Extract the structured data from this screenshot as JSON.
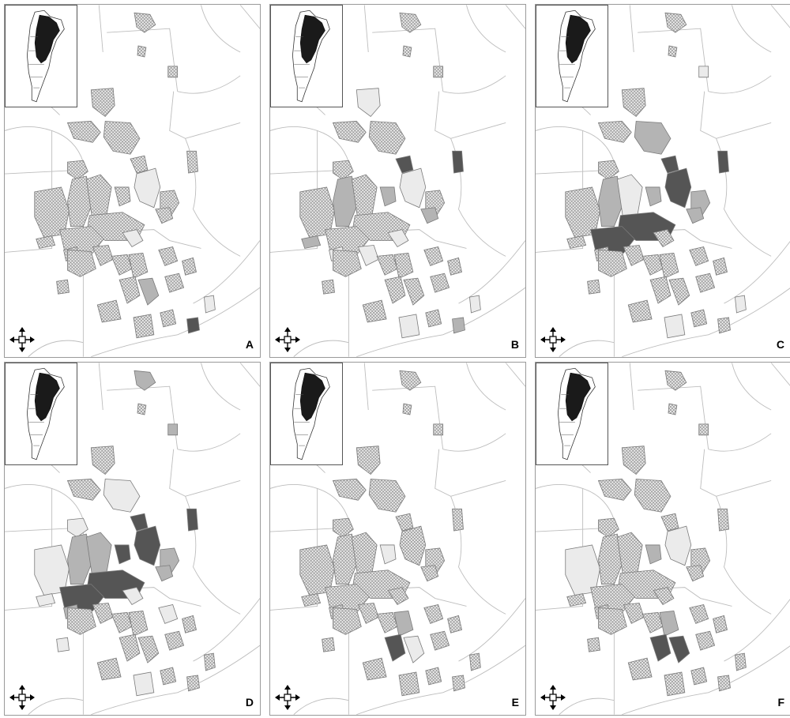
{
  "figure": {
    "panels": [
      {
        "label": "A",
        "districts": [
          [
            "d1",
            "hatch"
          ],
          [
            "d2",
            "hatch"
          ],
          [
            "d3",
            "hatch"
          ],
          [
            "d4",
            "hatch"
          ],
          [
            "d5",
            "hatch"
          ],
          [
            "d6",
            "hatch"
          ],
          [
            "d7",
            "hatch"
          ],
          [
            "d8",
            "hatch"
          ],
          [
            "d9",
            "light"
          ],
          [
            "d10",
            "hatch"
          ],
          [
            "d11",
            "hatch"
          ],
          [
            "d12",
            "hatch"
          ],
          [
            "d13",
            "hatch"
          ],
          [
            "d14",
            "hatch"
          ],
          [
            "d15",
            "hatch"
          ],
          [
            "d16",
            "hatch"
          ],
          [
            "d17",
            "hatch"
          ],
          [
            "d18",
            "hatch"
          ],
          [
            "d19",
            "hatch"
          ],
          [
            "d20",
            "light"
          ],
          [
            "d21",
            "hatch"
          ],
          [
            "d22",
            "hatch"
          ],
          [
            "d23",
            "hatch"
          ],
          [
            "d24",
            "hatch"
          ],
          [
            "d25",
            "hatch"
          ],
          [
            "d26",
            "hatch"
          ],
          [
            "d27",
            "mid"
          ],
          [
            "d28",
            "hatch"
          ],
          [
            "d29",
            "hatch"
          ],
          [
            "d30",
            "hatch"
          ],
          [
            "d31",
            "light"
          ],
          [
            "d32",
            "dark"
          ],
          [
            "d33",
            "hatch"
          ],
          [
            "d34",
            "hatch"
          ],
          [
            "d35",
            "hatch"
          ],
          [
            "d36",
            "hatch"
          ]
        ]
      },
      {
        "label": "B",
        "districts": [
          [
            "d1",
            "hatch"
          ],
          [
            "d2",
            "hatch"
          ],
          [
            "d3",
            "hatch"
          ],
          [
            "d4",
            "light"
          ],
          [
            "d5",
            "hatch"
          ],
          [
            "d6",
            "hatch"
          ],
          [
            "d7",
            "hatch"
          ],
          [
            "d8",
            "dark"
          ],
          [
            "d9",
            "light"
          ],
          [
            "d10",
            "hatch"
          ],
          [
            "d11",
            "hatch"
          ],
          [
            "d12",
            "mid"
          ],
          [
            "d13",
            "hatch"
          ],
          [
            "d14",
            "mid"
          ],
          [
            "d15",
            "dark"
          ],
          [
            "d16",
            "mid"
          ],
          [
            "d17",
            "hatch"
          ],
          [
            "d18",
            "hatch"
          ],
          [
            "d19",
            "mid"
          ],
          [
            "d20",
            "light"
          ],
          [
            "d21",
            "light"
          ],
          [
            "d22",
            "light"
          ],
          [
            "d23",
            "hatch"
          ],
          [
            "d24",
            "hatch"
          ],
          [
            "d25",
            "hatch"
          ],
          [
            "d26",
            "hatch"
          ],
          [
            "d27",
            "hatch"
          ],
          [
            "d28",
            "hatch"
          ],
          [
            "d29",
            "light"
          ],
          [
            "d30",
            "hatch"
          ],
          [
            "d31",
            "light"
          ],
          [
            "d32",
            "mid"
          ],
          [
            "d33",
            "hatch"
          ],
          [
            "d34",
            "hatch"
          ],
          [
            "d35",
            "hatch"
          ],
          [
            "d36",
            "hatch"
          ]
        ]
      },
      {
        "label": "C",
        "districts": [
          [
            "d1",
            "hatch"
          ],
          [
            "d2",
            "light"
          ],
          [
            "d3",
            "hatch"
          ],
          [
            "d4",
            "hatch"
          ],
          [
            "d5",
            "mid"
          ],
          [
            "d6",
            "hatch"
          ],
          [
            "d7",
            "hatch"
          ],
          [
            "d8",
            "dark"
          ],
          [
            "d9",
            "dark"
          ],
          [
            "d10",
            "mid"
          ],
          [
            "d11",
            "hatch"
          ],
          [
            "d12",
            "mid"
          ],
          [
            "d13",
            "light"
          ],
          [
            "d14",
            "mid"
          ],
          [
            "d15",
            "dark"
          ],
          [
            "d16",
            "mid"
          ],
          [
            "d17",
            "dark"
          ],
          [
            "d18",
            "dark"
          ],
          [
            "d19",
            "hatch"
          ],
          [
            "d20",
            "hatch"
          ],
          [
            "d21",
            "hatch"
          ],
          [
            "d22",
            "hatch"
          ],
          [
            "d23",
            "hatch"
          ],
          [
            "d24",
            "hatch"
          ],
          [
            "d25",
            "hatch"
          ],
          [
            "d26",
            "hatch"
          ],
          [
            "d27",
            "hatch"
          ],
          [
            "d28",
            "hatch"
          ],
          [
            "d29",
            "light"
          ],
          [
            "d30",
            "hatch"
          ],
          [
            "d31",
            "light"
          ],
          [
            "d32",
            "hatch"
          ],
          [
            "d33",
            "hatch"
          ],
          [
            "d34",
            "hatch"
          ],
          [
            "d35",
            "hatch"
          ],
          [
            "d36",
            "hatch"
          ]
        ]
      },
      {
        "label": "D",
        "districts": [
          [
            "d1",
            "mid"
          ],
          [
            "d2",
            "mid"
          ],
          [
            "d3",
            "hatch"
          ],
          [
            "d4",
            "hatch"
          ],
          [
            "d5",
            "light"
          ],
          [
            "d6",
            "hatch"
          ],
          [
            "d7",
            "light"
          ],
          [
            "d8",
            "dark"
          ],
          [
            "d9",
            "dark"
          ],
          [
            "d10",
            "mid"
          ],
          [
            "d11",
            "light"
          ],
          [
            "d12",
            "mid"
          ],
          [
            "d13",
            "mid"
          ],
          [
            "d14",
            "dark"
          ],
          [
            "d15",
            "dark"
          ],
          [
            "d16",
            "mid"
          ],
          [
            "d17",
            "dark"
          ],
          [
            "d18",
            "dark"
          ],
          [
            "d19",
            "light"
          ],
          [
            "d20",
            "light"
          ],
          [
            "d21",
            "mid"
          ],
          [
            "d22",
            "hatch"
          ],
          [
            "d23",
            "hatch"
          ],
          [
            "d24",
            "hatch"
          ],
          [
            "d25",
            "hatch"
          ],
          [
            "d26",
            "hatch"
          ],
          [
            "d27",
            "hatch"
          ],
          [
            "d28",
            "hatch"
          ],
          [
            "d29",
            "light"
          ],
          [
            "d30",
            "hatch"
          ],
          [
            "d31",
            "hatch"
          ],
          [
            "d32",
            "hatch"
          ],
          [
            "d33",
            "hatch"
          ],
          [
            "d34",
            "light"
          ],
          [
            "d35",
            "hatch"
          ],
          [
            "d36",
            "light"
          ]
        ]
      },
      {
        "label": "E",
        "districts": [
          [
            "d1",
            "hatch"
          ],
          [
            "d2",
            "hatch"
          ],
          [
            "d3",
            "hatch"
          ],
          [
            "d4",
            "hatch"
          ],
          [
            "d5",
            "hatch"
          ],
          [
            "d6",
            "hatch"
          ],
          [
            "d7",
            "hatch"
          ],
          [
            "d8",
            "hatch"
          ],
          [
            "d9",
            "hatch"
          ],
          [
            "d10",
            "hatch"
          ],
          [
            "d11",
            "hatch"
          ],
          [
            "d12",
            "hatch"
          ],
          [
            "d13",
            "hatch"
          ],
          [
            "d14",
            "light"
          ],
          [
            "d15",
            "hatch"
          ],
          [
            "d16",
            "hatch"
          ],
          [
            "d17",
            "hatch"
          ],
          [
            "d18",
            "hatch"
          ],
          [
            "d19",
            "hatch"
          ],
          [
            "d20",
            "hatch"
          ],
          [
            "d21",
            "hatch"
          ],
          [
            "d22",
            "hatch"
          ],
          [
            "d23",
            "hatch"
          ],
          [
            "d24",
            "hatch"
          ],
          [
            "d25",
            "mid"
          ],
          [
            "d26",
            "dark"
          ],
          [
            "d27",
            "light"
          ],
          [
            "d28",
            "hatch"
          ],
          [
            "d29",
            "hatch"
          ],
          [
            "d30",
            "hatch"
          ],
          [
            "d31",
            "hatch"
          ],
          [
            "d32",
            "hatch"
          ],
          [
            "d33",
            "hatch"
          ],
          [
            "d34",
            "hatch"
          ],
          [
            "d35",
            "hatch"
          ],
          [
            "d36",
            "hatch"
          ]
        ]
      },
      {
        "label": "F",
        "districts": [
          [
            "d1",
            "hatch"
          ],
          [
            "d2",
            "hatch"
          ],
          [
            "d3",
            "hatch"
          ],
          [
            "d4",
            "hatch"
          ],
          [
            "d5",
            "hatch"
          ],
          [
            "d6",
            "hatch"
          ],
          [
            "d7",
            "hatch"
          ],
          [
            "d8",
            "hatch"
          ],
          [
            "d9",
            "light"
          ],
          [
            "d10",
            "hatch"
          ],
          [
            "d11",
            "light"
          ],
          [
            "d12",
            "hatch"
          ],
          [
            "d13",
            "hatch"
          ],
          [
            "d14",
            "mid"
          ],
          [
            "d15",
            "hatch"
          ],
          [
            "d16",
            "hatch"
          ],
          [
            "d17",
            "hatch"
          ],
          [
            "d18",
            "hatch"
          ],
          [
            "d19",
            "hatch"
          ],
          [
            "d20",
            "hatch"
          ],
          [
            "d21",
            "hatch"
          ],
          [
            "d22",
            "hatch"
          ],
          [
            "d23",
            "hatch"
          ],
          [
            "d24",
            "hatch"
          ],
          [
            "d25",
            "mid"
          ],
          [
            "d26",
            "dark"
          ],
          [
            "d27",
            "dark"
          ],
          [
            "d28",
            "hatch"
          ],
          [
            "d29",
            "hatch"
          ],
          [
            "d30",
            "hatch"
          ],
          [
            "d31",
            "hatch"
          ],
          [
            "d32",
            "hatch"
          ],
          [
            "d33",
            "hatch"
          ],
          [
            "d34",
            "hatch"
          ],
          [
            "d35",
            "hatch"
          ],
          [
            "d36",
            "hatch"
          ]
        ]
      }
    ]
  },
  "legend_colors": {
    "light": "#ebebeb",
    "mid": "#b4b4b4",
    "dark": "#555555",
    "hatch": "#f4f4f4",
    "hatch_stroke": "#8a8a8a",
    "border": "#7a7a7a",
    "province_line": "#bdbdbd",
    "inset_fill": "#1a1a1a"
  }
}
